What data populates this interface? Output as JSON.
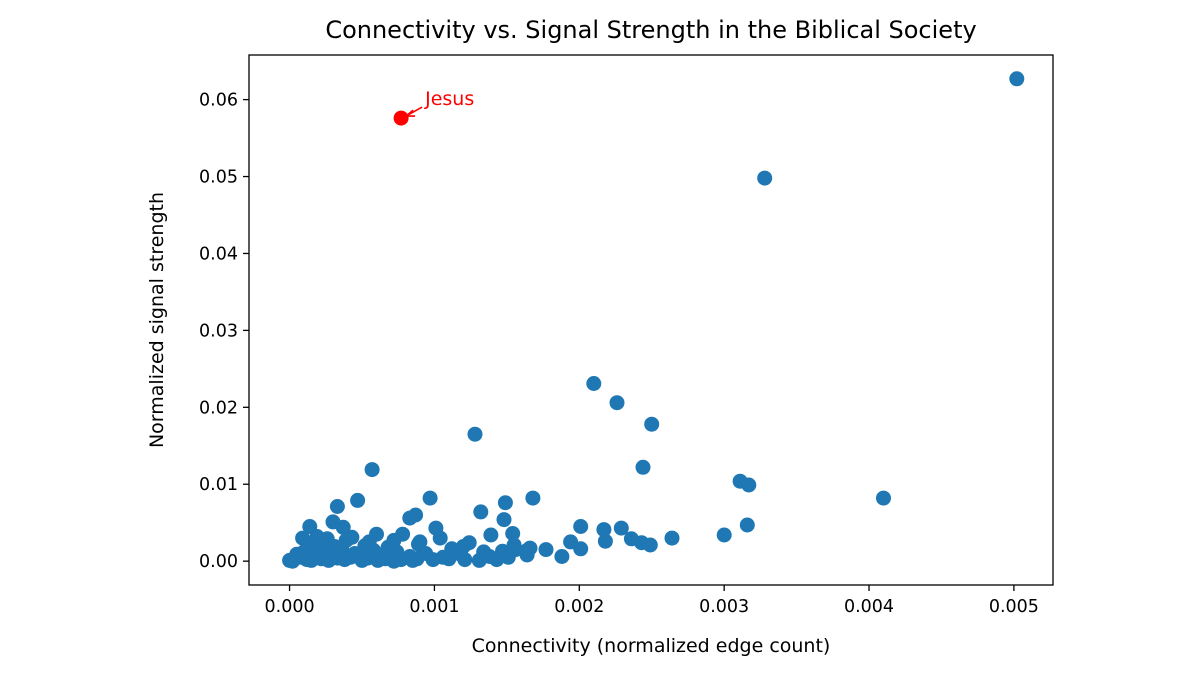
{
  "chart_data": {
    "type": "scatter",
    "title": "Connectivity vs. Signal Strength in the Biblical Society",
    "xlabel": "Connectivity (normalized edge count)",
    "ylabel": "Normalized signal strength",
    "xlim": [
      -0.00028,
      0.00527
    ],
    "ylim": [
      -0.0031,
      0.0658
    ],
    "x_ticks": [
      0.0,
      0.001,
      0.002,
      0.003,
      0.004,
      0.005
    ],
    "x_tick_labels": [
      "0.000",
      "0.001",
      "0.002",
      "0.003",
      "0.004",
      "0.005"
    ],
    "y_ticks": [
      0.0,
      0.01,
      0.02,
      0.03,
      0.04,
      0.05,
      0.06
    ],
    "y_tick_labels": [
      "0.00",
      "0.01",
      "0.02",
      "0.03",
      "0.04",
      "0.05",
      "0.06"
    ],
    "grid": false,
    "point_color": "#1f77b4",
    "highlight_color": "#ff0000",
    "points": [
      [
        0.00502,
        0.0627
      ],
      [
        0.00328,
        0.0498
      ],
      [
        0.0021,
        0.0231
      ],
      [
        0.00226,
        0.0206
      ],
      [
        0.0025,
        0.0178
      ],
      [
        0.00128,
        0.0165
      ],
      [
        0.00244,
        0.0122
      ],
      [
        0.00057,
        0.0119
      ],
      [
        0.0041,
        0.0082
      ],
      [
        0.00311,
        0.0104
      ],
      [
        0.00317,
        0.0099
      ],
      [
        0.00097,
        0.0082
      ],
      [
        0.00168,
        0.0082
      ],
      [
        0.00047,
        0.0079
      ],
      [
        0.00149,
        0.0076
      ],
      [
        0.00033,
        0.0071
      ],
      [
        0.00132,
        0.0064
      ],
      [
        0.00087,
        0.006
      ],
      [
        0.00083,
        0.0056
      ],
      [
        0.00148,
        0.0054
      ],
      [
        0.0003,
        0.0051
      ],
      [
        0.00316,
        0.0047
      ],
      [
        0.00201,
        0.0045
      ],
      [
        0.00101,
        0.0043
      ],
      [
        0.00014,
        0.0045
      ],
      [
        0.00037,
        0.0044
      ],
      [
        0.00229,
        0.0043
      ],
      [
        0.00217,
        0.0041
      ],
      [
        0.00154,
        0.0036
      ],
      [
        0.00078,
        0.0035
      ],
      [
        0.0006,
        0.0035
      ],
      [
        0.00139,
        0.0034
      ],
      [
        0.003,
        0.0034
      ],
      [
        0.00236,
        0.0029
      ],
      [
        0.00264,
        0.003
      ],
      [
        9e-05,
        0.003
      ],
      [
        0.00043,
        0.0031
      ],
      [
        0.00104,
        0.003
      ],
      [
        0.00243,
        0.0024
      ],
      [
        0.00218,
        0.0026
      ],
      [
        0.00249,
        0.0021
      ],
      [
        0.00124,
        0.0024
      ],
      [
        0.00155,
        0.0021
      ],
      [
        0.00194,
        0.0025
      ],
      [
        0.00201,
        0.0016
      ],
      [
        0.00177,
        0.0015
      ],
      [
        0.00156,
        0.0015
      ],
      [
        0.00164,
        0.0014
      ],
      [
        0.00147,
        0.0013
      ],
      [
        0.00015,
        0.002
      ],
      [
        0.00025,
        0.0024
      ],
      [
        0.00052,
        0.002
      ],
      [
        0.00068,
        0.0018
      ],
      [
        0.00089,
        0.0022
      ],
      [
        0.00112,
        0.0016
      ],
      [
        0.00134,
        0.0012
      ],
      [
        0.00164,
        0.0008
      ],
      [
        0.00188,
        0.0006
      ],
      [
        0.00118,
        0.0009
      ],
      [
        0.00094,
        0.001
      ],
      [
        0.00074,
        0.0012
      ],
      [
        0.00058,
        0.0014
      ],
      [
        0.00036,
        0.0017
      ],
      [
        0.0002,
        0.0014
      ],
      [
        0.0001,
        0.0012
      ],
      [
        5e-05,
        0.0009
      ],
      [
        0.00138,
        0.0006
      ],
      [
        0.00151,
        0.0005
      ],
      [
        0.00106,
        0.0005
      ],
      [
        0.00083,
        0.0006
      ],
      [
        0.00063,
        0.0008
      ],
      [
        0.00045,
        0.001
      ],
      [
        0.00028,
        0.0011
      ],
      [
        0.00016,
        0.0007
      ],
      [
        8e-05,
        0.0005
      ],
      [
        3e-05,
        0.0003
      ],
      [
        0.0,
        0.0001
      ],
      [
        2e-05,
        0.0
      ],
      [
        0.00012,
        0.0002
      ],
      [
        0.00022,
        0.0003
      ],
      [
        0.00033,
        0.0004
      ],
      [
        0.00042,
        0.0005
      ],
      [
        0.00054,
        0.0004
      ],
      [
        0.00066,
        0.0003
      ],
      [
        0.00077,
        0.0002
      ],
      [
        0.00088,
        0.0003
      ],
      [
        0.00099,
        0.0002
      ],
      [
        0.0011,
        0.0003
      ],
      [
        0.00121,
        0.0002
      ],
      [
        0.00131,
        0.0001
      ],
      [
        0.00143,
        0.0002
      ],
      [
        0.00015,
        0.0001
      ],
      [
        0.00027,
        0.0001
      ],
      [
        0.00038,
        0.0002
      ],
      [
        0.0005,
        0.0001
      ],
      [
        0.00061,
        0.0001
      ],
      [
        0.00072,
        0.0
      ],
      [
        0.00085,
        0.0001
      ],
      [
        0.00026,
        0.0029
      ],
      [
        0.00039,
        0.0027
      ],
      [
        0.00072,
        0.0027
      ],
      [
        0.0009,
        0.0025
      ],
      [
        0.00019,
        0.0032
      ],
      [
        0.00055,
        0.0025
      ],
      [
        0.00031,
        0.0019
      ],
      [
        0.0012,
        0.0019
      ],
      [
        0.00166,
        0.0017
      ]
    ],
    "highlight": {
      "name": "Jesus",
      "x": 0.00077,
      "y": 0.0576
    }
  }
}
